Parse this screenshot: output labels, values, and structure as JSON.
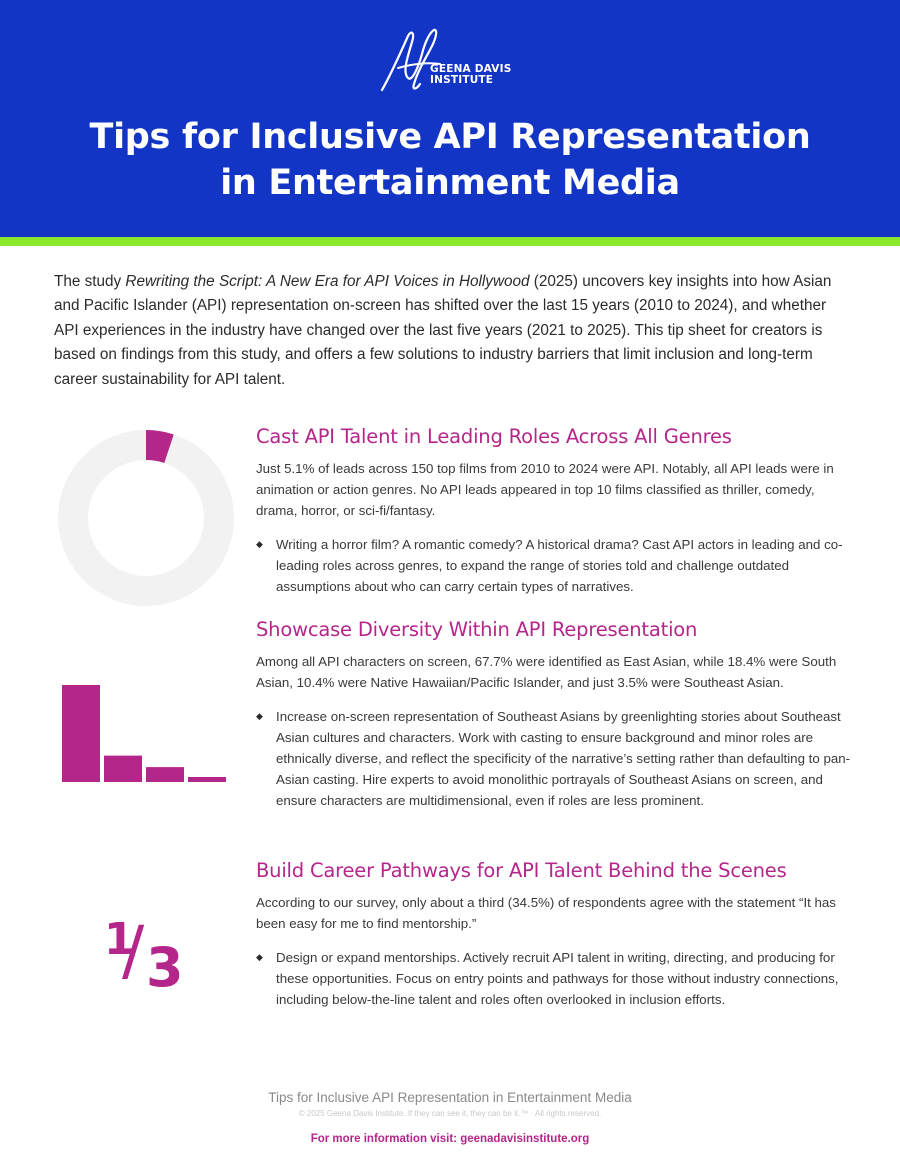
{
  "header": {
    "logo_line1": "GEENA DAVIS",
    "logo_line2": "INSTITUTE",
    "title_line1": "Tips for Inclusive API Representation",
    "title_line2": "in Entertainment Media",
    "bg_color": "#1235c6",
    "accent_color": "#8ae82c"
  },
  "intro": {
    "prefix": "The study ",
    "study_title": "Rewriting the Script: A New Era for API Voices in Hollywood",
    "body": " (2025) uncovers key insights into how Asian and Pacific Islander (API) representation on-screen has shifted over the last 15 years (2010 to 2024), and whether API experiences in the industry have changed over the last five years (2021 to 2025). This tip sheet for creators is based on findings from this study, and offers a few solutions to industry barriers that limit inclusion and long-term career sustainability for API talent."
  },
  "sections": [
    {
      "heading": "Cast API Talent in Leading Roles Across All Genres",
      "stat": "Just 5.1% of leads across 150 top films from 2010 to 2024 were API. Notably, all API leads were in animation or action genres. No API leads appeared in top 10 films classified as thriller, comedy, drama, horror, or sci-fi/fantasy.",
      "bullet": "Writing a horror film? A romantic comedy? A historical drama? Cast API actors in leading and co-leading roles across genres, to expand the range of stories told and challenge outdated assumptions about who can carry certain types of narratives."
    },
    {
      "heading": "Showcase Diversity Within API Representation",
      "stat": "Among all API characters on screen, 67.7% were identified as East Asian, while 18.4% were South Asian, 10.4% were Native Hawaiian/Pacific Islander, and just 3.5% were Southeast Asian.",
      "bullet": "Increase on-screen representation of Southeast Asians by greenlighting stories about Southeast Asian cultures and characters. Work with casting to ensure background and minor roles are ethnically diverse, and reflect the specificity of the narrative’s setting rather than defaulting to pan-Asian casting. Hire experts to avoid monolithic portrayals of Southeast Asians on screen, and ensure characters are multidimensional, even if roles are less prominent."
    },
    {
      "heading": "Build Career Pathways for API Talent Behind the Scenes",
      "stat": "According to our survey, only about a third (34.5%) of respondents agree with the statement “It has been easy for me to find mentorship.”",
      "bullet": "Design or expand mentorships. Actively recruit API talent in writing, directing, and producing for these opportunities. Focus on entry points and pathways for those without industry connections, including below-the-line talent and roles often overlooked in inclusion efforts."
    }
  ],
  "bullet_glyph": "◆",
  "visuals": {
    "donut": {
      "value_percent": 5.1,
      "accent_color": "#b5268b",
      "track_color": "#f2f2f2"
    },
    "bars": {
      "values_percent": [
        67.7,
        18.4,
        10.4,
        3.5
      ],
      "color": "#b5268b"
    },
    "fraction": {
      "numerator": "1",
      "slash": "/",
      "denominator": "3",
      "color": "#b5268b"
    }
  },
  "footer": {
    "title": "Tips for Inclusive API Representation in Entertainment Media",
    "copyright": "© 2025 Geena Davis Institute. If they can see it, they can be it.™ · All rights reserved.",
    "link_text": "For more information visit: geenadavisinstitute.org"
  }
}
